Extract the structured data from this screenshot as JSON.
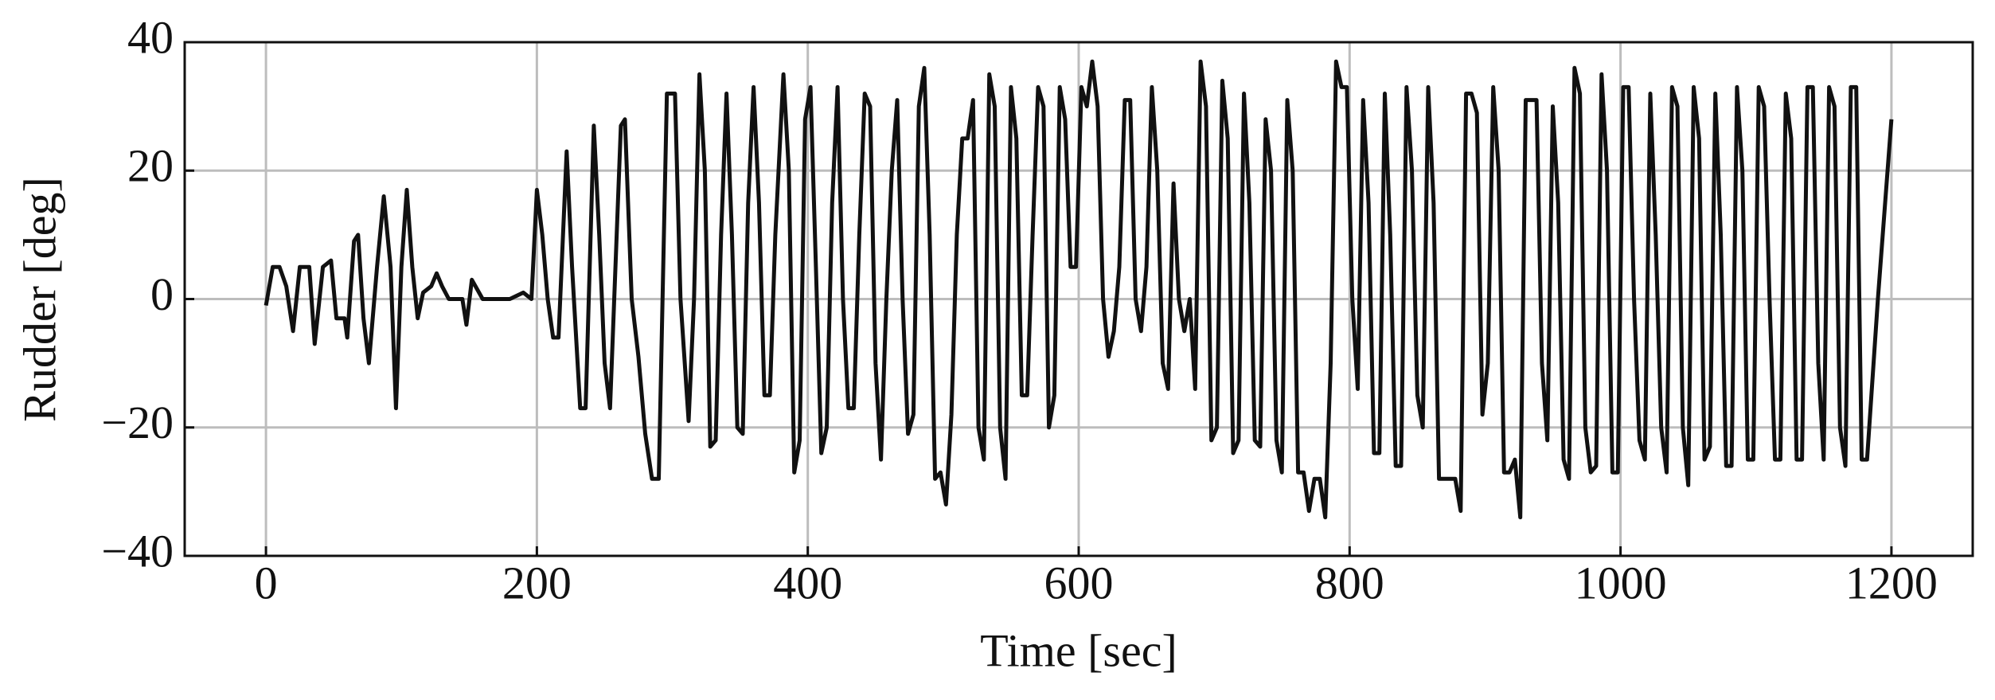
{
  "chart_data": {
    "type": "line",
    "xlabel": "Time [sec]",
    "ylabel": "Rudder [deg]",
    "xlim": [
      -60,
      1260
    ],
    "ylim": [
      -40,
      40
    ],
    "xticks": [
      0,
      200,
      400,
      600,
      800,
      1000,
      1200
    ],
    "yticks": [
      {
        "value": -40,
        "label": "−40"
      },
      {
        "value": -20,
        "label": "−20"
      },
      0,
      20,
      40
    ],
    "grid": true,
    "x": [
      0,
      5,
      10,
      15,
      20,
      25,
      32,
      36,
      42,
      48,
      52,
      58,
      60,
      65,
      68,
      72,
      76,
      82,
      87,
      92,
      96,
      100,
      104,
      108,
      112,
      116,
      122,
      126,
      130,
      135,
      145,
      148,
      152,
      160,
      180,
      190,
      196,
      200,
      204,
      208,
      212,
      216,
      222,
      226,
      232,
      236,
      242,
      246,
      250,
      254,
      258,
      262,
      265,
      270,
      275,
      280,
      285,
      290,
      296,
      302,
      306,
      312,
      316,
      320,
      324,
      328,
      332,
      336,
      340,
      344,
      348,
      352,
      356,
      360,
      364,
      368,
      372,
      376,
      382,
      386,
      390,
      394,
      398,
      402,
      406,
      410,
      414,
      418,
      422,
      426,
      430,
      434,
      438,
      442,
      446,
      450,
      454,
      458,
      462,
      466,
      470,
      474,
      478,
      482,
      486,
      490,
      494,
      498,
      502,
      506,
      510,
      514,
      518,
      522,
      526,
      530,
      534,
      538,
      542,
      546,
      550,
      554,
      558,
      562,
      566,
      570,
      574,
      578,
      582,
      586,
      590,
      594,
      598,
      602,
      606,
      610,
      614,
      618,
      622,
      626,
      630,
      634,
      638,
      642,
      646,
      650,
      654,
      658,
      662,
      666,
      670,
      674,
      678,
      682,
      686,
      690,
      694,
      698,
      702,
      706,
      710,
      714,
      718,
      722,
      726,
      730,
      734,
      738,
      742,
      746,
      750,
      754,
      758,
      762,
      766,
      770,
      774,
      778,
      782,
      786,
      790,
      794,
      798,
      802,
      806,
      810,
      814,
      818,
      822,
      826,
      830,
      834,
      838,
      842,
      846,
      850,
      854,
      858,
      862,
      866,
      870,
      878,
      882,
      886,
      890,
      894,
      898,
      902,
      906,
      910,
      914,
      918,
      922,
      926,
      930,
      934,
      938,
      942,
      946,
      950,
      954,
      958,
      962,
      966,
      970,
      974,
      978,
      982,
      986,
      990,
      994,
      998,
      1002,
      1006,
      1010,
      1014,
      1018,
      1022,
      1026,
      1030,
      1034,
      1038,
      1042,
      1046,
      1050,
      1054,
      1058,
      1062,
      1066,
      1070,
      1074,
      1078,
      1082,
      1086,
      1090,
      1094,
      1098,
      1102,
      1106,
      1110,
      1114,
      1118,
      1122,
      1126,
      1130,
      1134,
      1138,
      1142,
      1146,
      1150,
      1154,
      1158,
      1162,
      1166,
      1170,
      1174,
      1178,
      1182,
      1190,
      1200
    ],
    "series": [
      {
        "color": "#111111",
        "values": [
          -1,
          5,
          5,
          2,
          -5,
          5,
          5,
          -7,
          5,
          6,
          -3,
          -3,
          -6,
          9,
          10,
          -3,
          -10,
          5,
          16,
          5,
          -17,
          5,
          17,
          5,
          -3,
          1,
          2,
          4,
          2,
          0,
          0,
          -4,
          3,
          0,
          0,
          1,
          0,
          17,
          10,
          0,
          -6,
          -6,
          23,
          5,
          -17,
          -17,
          27,
          10,
          -10,
          -17,
          5,
          27,
          28,
          0,
          -9,
          -21,
          -28,
          -28,
          32,
          32,
          0,
          -19,
          0,
          35,
          20,
          -23,
          -22,
          10,
          32,
          10,
          -20,
          -21,
          15,
          33,
          15,
          -15,
          -15,
          10,
          35,
          20,
          -27,
          -22,
          28,
          33,
          5,
          -24,
          -20,
          15,
          33,
          0,
          -17,
          -17,
          10,
          32,
          30,
          -10,
          -25,
          0,
          20,
          31,
          0,
          -21,
          -18,
          30,
          36,
          10,
          -28,
          -27,
          -32,
          -18,
          10,
          25,
          25,
          31,
          -20,
          -25,
          35,
          30,
          -20,
          -28,
          33,
          25,
          -15,
          -15,
          10,
          33,
          30,
          -20,
          -15,
          33,
          28,
          5,
          5,
          33,
          30,
          37,
          30,
          0,
          -9,
          -5,
          5,
          31,
          31,
          0,
          -5,
          5,
          33,
          20,
          -10,
          -14,
          18,
          0,
          -5,
          0,
          -14,
          37,
          30,
          -22,
          -20,
          34,
          25,
          -24,
          -22,
          32,
          15,
          -22,
          -23,
          28,
          20,
          -22,
          -27,
          31,
          20,
          -27,
          -27,
          -33,
          -28,
          -28,
          -34,
          -10,
          37,
          33,
          33,
          0,
          -14,
          31,
          15,
          -24,
          -24,
          32,
          10,
          -26,
          -26,
          33,
          20,
          -15,
          -20,
          33,
          15,
          -28,
          -28,
          -28,
          -33,
          32,
          32,
          29,
          -18,
          -10,
          33,
          20,
          -27,
          -27,
          -25,
          -34,
          31,
          31,
          31,
          -10,
          -22,
          30,
          15,
          -25,
          -28,
          36,
          32,
          -20,
          -27,
          -26,
          35,
          20,
          -27,
          -27,
          33,
          33,
          0,
          -22,
          -25,
          32,
          10,
          -20,
          -27,
          33,
          30,
          -20,
          -29,
          33,
          25,
          -25,
          -23,
          32,
          10,
          -26,
          -26,
          33,
          20,
          -25,
          -25,
          33,
          30,
          0,
          -25,
          -25,
          32,
          25,
          -25,
          -25,
          33,
          33,
          -10,
          -25,
          33,
          30,
          -20,
          -26,
          33,
          33,
          -25,
          -25,
          0,
          28
        ]
      }
    ]
  }
}
